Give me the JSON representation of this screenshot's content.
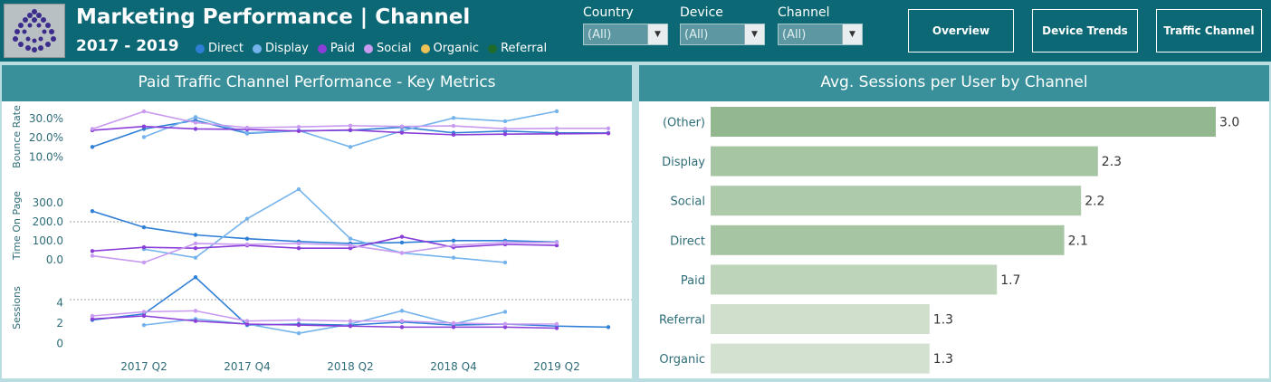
{
  "header": {
    "title": "Marketing Performance | Channel",
    "subtitle": "2017 - 2019",
    "legend": [
      {
        "label": "Direct",
        "color": "#2f7fd6"
      },
      {
        "label": "Display",
        "color": "#74b3ec"
      },
      {
        "label": "Paid",
        "color": "#8a3ed8"
      },
      {
        "label": "Social",
        "color": "#c89af0"
      },
      {
        "label": "Organic",
        "color": "#efc257"
      },
      {
        "label": "Referral",
        "color": "#1e6b2c"
      }
    ]
  },
  "filters": [
    {
      "label": "Country",
      "value": "(All)"
    },
    {
      "label": "Device",
      "value": "(All)"
    },
    {
      "label": "Channel",
      "value": "(All)"
    }
  ],
  "nav": {
    "overview": "Overview",
    "device_trends": "Device Trends",
    "traffic_channel": "Traffic Channel"
  },
  "left_panel": {
    "title": "Paid Traffic Channel Performance - Key Metrics"
  },
  "right_panel": {
    "title": "Avg. Sessions per User by Channel"
  },
  "chart_data": [
    {
      "type": "line",
      "title": "Paid Traffic Channel Performance - Key Metrics",
      "x": [
        "2017 Q1",
        "2017 Q2",
        "2017 Q3",
        "2017 Q4",
        "2018 Q1",
        "2018 Q2",
        "2018 Q3",
        "2018 Q4",
        "2019 Q1",
        "2019 Q2",
        "2019 Q3"
      ],
      "x_tick_labels": [
        "2017 Q2",
        "2017 Q4",
        "2018 Q2",
        "2018 Q4",
        "2019 Q2"
      ],
      "panels": [
        {
          "ylabel": "Bounce Rate",
          "ylim": [
            0.05,
            0.36
          ],
          "yticks": [
            0.1,
            0.2,
            0.3
          ],
          "ytick_labels": [
            "10.0%",
            "20.0%",
            "30.0%"
          ],
          "series": [
            {
              "name": "Direct",
              "color": "#2f7fd6",
              "values": [
                0.152,
                0.245,
                0.29,
                0.222,
                0.236,
                0.238,
                0.254,
                0.225,
                0.234,
                0.225,
                0.224
              ]
            },
            {
              "name": "Display",
              "color": "#74b3ec",
              "values": [
                null,
                0.203,
                0.307,
                0.225,
                0.237,
                0.152,
                0.235,
                0.302,
                0.285,
                0.337,
                null
              ]
            },
            {
              "name": "Paid",
              "color": "#8a3ed8",
              "values": [
                0.238,
                0.258,
                0.245,
                0.243,
                0.234,
                0.24,
                0.226,
                0.215,
                0.218,
                0.22,
                0.222
              ]
            },
            {
              "name": "Social",
              "color": "#c89af0",
              "values": [
                0.245,
                0.336,
                0.278,
                0.252,
                0.256,
                0.262,
                0.258,
                0.261,
                0.246,
                0.248,
                0.248
              ]
            }
          ]
        },
        {
          "ylabel": "Time On Page",
          "ylim": [
            -20,
            380
          ],
          "yticks": [
            0,
            100,
            200,
            300
          ],
          "ytick_labels": [
            "0.0",
            "100.0",
            "200.0",
            "300.0"
          ],
          "series": [
            {
              "name": "Direct",
              "color": "#2f7fd6",
              "values": [
                255,
                170,
                130,
                110,
                95,
                85,
                90,
                100,
                100,
                92,
                null
              ]
            },
            {
              "name": "Display",
              "color": "#74b3ec",
              "values": [
                null,
                55,
                10,
                215,
                370,
                110,
                35,
                10,
                -15,
                null,
                null
              ]
            },
            {
              "name": "Paid",
              "color": "#8a3ed8",
              "values": [
                45,
                65,
                60,
                75,
                60,
                60,
                120,
                65,
                80,
                75,
                null
              ]
            },
            {
              "name": "Social",
              "color": "#c89af0",
              "values": [
                20,
                -15,
                85,
                80,
                85,
                75,
                35,
                75,
                90,
                90,
                null
              ]
            }
          ]
        },
        {
          "ylabel": "Sessions",
          "ylim": [
            -0.5,
            7.5
          ],
          "yticks": [
            0,
            2,
            4
          ],
          "ytick_labels": [
            "0",
            "2",
            "4"
          ],
          "series": [
            {
              "name": "Direct",
              "color": "#2f7fd6",
              "values": [
                2.3,
                2.9,
                6.5,
                1.8,
                1.9,
                1.8,
                2.1,
                1.8,
                1.9,
                1.7,
                1.6
              ]
            },
            {
              "name": "Display",
              "color": "#74b3ec",
              "values": [
                null,
                1.8,
                2.4,
                1.9,
                1.0,
                1.9,
                3.2,
                1.9,
                3.1,
                null,
                null
              ]
            },
            {
              "name": "Paid",
              "color": "#8a3ed8",
              "values": [
                2.4,
                2.7,
                2.2,
                1.9,
                1.8,
                1.7,
                1.6,
                1.6,
                1.6,
                1.5,
                null
              ]
            },
            {
              "name": "Social",
              "color": "#c89af0",
              "values": [
                2.7,
                3.1,
                3.2,
                2.2,
                2.3,
                2.2,
                2.2,
                2.0,
                1.9,
                1.9,
                null
              ]
            }
          ]
        }
      ]
    },
    {
      "type": "bar",
      "orientation": "horizontal",
      "title": "Avg. Sessions per User by Channel",
      "categories": [
        "(Other)",
        "Display",
        "Social",
        "Direct",
        "Paid",
        "Referral",
        "Organic"
      ],
      "values": [
        3.0,
        2.3,
        2.2,
        2.1,
        1.7,
        1.3,
        1.3
      ],
      "value_labels": [
        "3.0",
        "2.3",
        "2.2",
        "2.1",
        "1.7",
        "1.3",
        "1.3"
      ],
      "colors": [
        "#93b78f",
        "#a6c6a3",
        "#adcaaa",
        "#a6c6a3",
        "#bdd4ba",
        "#cfdfcc",
        "#d3e1d0"
      ],
      "xlim": [
        0,
        3.0
      ]
    }
  ]
}
